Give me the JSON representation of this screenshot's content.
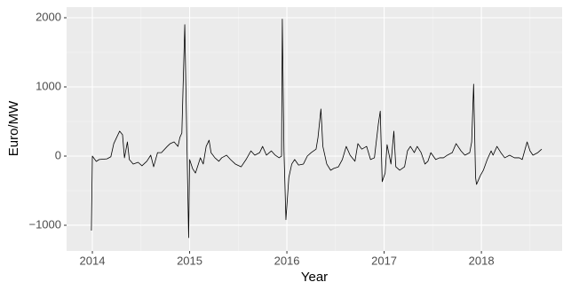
{
  "chart_data": {
    "type": "line",
    "x_label": "Year",
    "y_label": "Euro/MW",
    "x": [
      2013.99,
      2014.0,
      2014.04,
      2014.07,
      2014.15,
      2014.19,
      2014.22,
      2014.25,
      2014.28,
      2014.31,
      2014.33,
      2014.36,
      2014.38,
      2014.42,
      2014.47,
      2014.51,
      2014.56,
      2014.6,
      2014.63,
      2014.67,
      2014.71,
      2014.77,
      2014.8,
      2014.84,
      2014.88,
      2014.9,
      2014.92,
      2014.95,
      2014.97,
      2014.99,
      2015.0,
      2015.03,
      2015.06,
      2015.09,
      2015.11,
      2015.14,
      2015.17,
      2015.2,
      2015.22,
      2015.26,
      2015.3,
      2015.33,
      2015.38,
      2015.42,
      2015.47,
      2015.53,
      2015.58,
      2015.63,
      2015.67,
      2015.72,
      2015.75,
      2015.79,
      2015.84,
      2015.88,
      2015.92,
      2015.945,
      2015.953,
      2015.97,
      2015.99,
      2016.02,
      2016.05,
      2016.08,
      2016.12,
      2016.17,
      2016.21,
      2016.25,
      2016.3,
      2016.32,
      2016.35,
      2016.37,
      2016.41,
      2016.45,
      2016.48,
      2016.53,
      2016.57,
      2016.61,
      2016.65,
      2016.7,
      2016.73,
      2016.77,
      2016.82,
      2016.86,
      2016.9,
      2016.94,
      2016.96,
      2016.98,
      2017.01,
      2017.03,
      2017.07,
      2017.1,
      2017.12,
      2017.16,
      2017.21,
      2017.24,
      2017.27,
      2017.31,
      2017.34,
      2017.38,
      2017.42,
      2017.45,
      2017.48,
      2017.53,
      2017.57,
      2017.61,
      2017.65,
      2017.7,
      2017.74,
      2017.79,
      2017.83,
      2017.88,
      2017.9,
      2017.92,
      2017.94,
      2017.95,
      2017.99,
      2018.02,
      2018.06,
      2018.1,
      2018.12,
      2018.16,
      2018.2,
      2018.24,
      2018.29,
      2018.34,
      2018.39,
      2018.42,
      2018.47,
      2018.5,
      2018.53,
      2018.58,
      2018.62
    ],
    "series": [
      {
        "color": "#000000",
        "values": [
          -1077,
          0,
          -77,
          -50,
          -40,
          -10,
          180,
          270,
          360,
          310,
          -25,
          205,
          -50,
          -115,
          -90,
          -140,
          -75,
          13,
          -155,
          50,
          50,
          140,
          180,
          205,
          140,
          270,
          333,
          1900,
          333,
          -1180,
          -50,
          -180,
          -245,
          -115,
          -25,
          -115,
          140,
          230,
          50,
          -25,
          -75,
          -25,
          13,
          -50,
          -115,
          -155,
          -50,
          75,
          13,
          50,
          140,
          13,
          75,
          13,
          -25,
          0,
          1980,
          75,
          -920,
          -310,
          -115,
          -50,
          -130,
          -115,
          0,
          50,
          100,
          270,
          680,
          140,
          -115,
          -205,
          -180,
          -155,
          -50,
          140,
          13,
          -75,
          180,
          100,
          140,
          -50,
          -25,
          460,
          650,
          -370,
          -245,
          165,
          -115,
          360,
          -155,
          -205,
          -155,
          75,
          140,
          50,
          140,
          50,
          -115,
          -75,
          50,
          -50,
          -25,
          -25,
          13,
          50,
          180,
          75,
          13,
          50,
          205,
          1040,
          -310,
          -410,
          -280,
          -205,
          -50,
          75,
          13,
          140,
          50,
          -25,
          13,
          -25,
          -25,
          -50,
          205,
          75,
          13,
          50,
          100
        ]
      }
    ],
    "xlim": [
      2013.735,
      2018.83
    ],
    "xticks": [
      2014,
      2015,
      2016,
      2017,
      2018
    ],
    "ylim": [
      -1372,
      2154
    ],
    "yticks": [
      {
        "value": -1000,
        "label": "−1000"
      },
      0,
      1000,
      2000
    ],
    "grid": true
  }
}
